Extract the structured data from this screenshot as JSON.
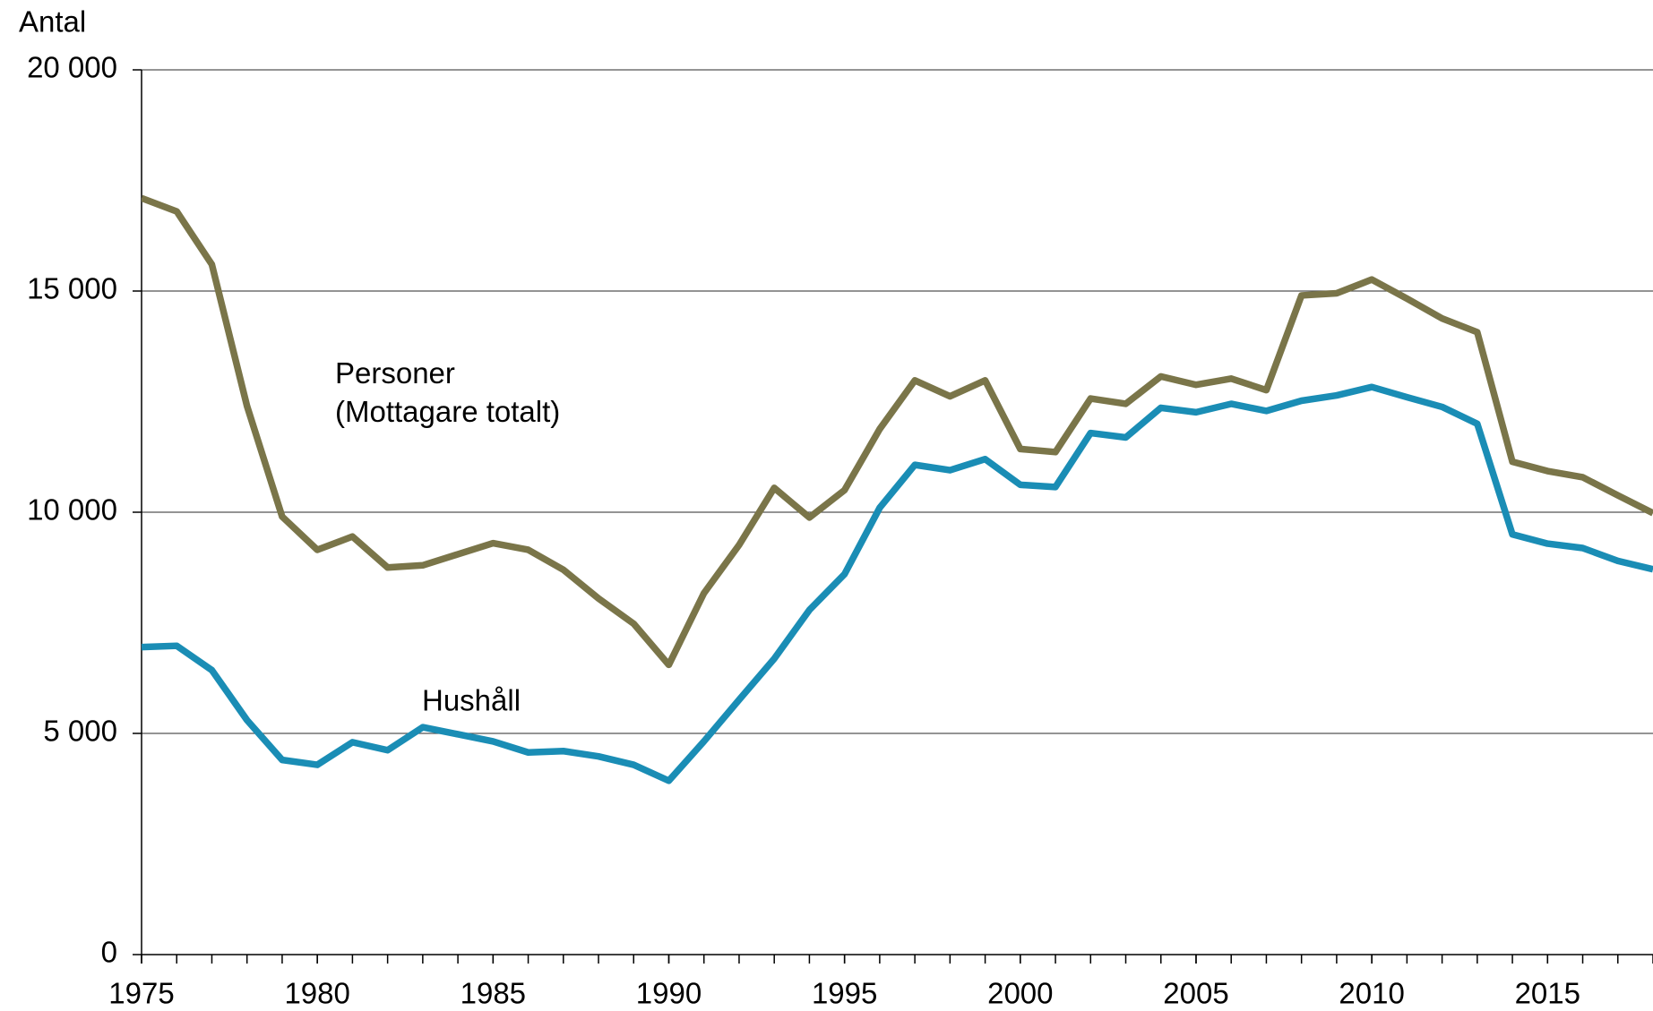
{
  "chart_data": {
    "type": "line",
    "y_axis_label": "Antal",
    "x": [
      1975,
      1976,
      1977,
      1978,
      1979,
      1980,
      1981,
      1982,
      1983,
      1984,
      1985,
      1986,
      1987,
      1988,
      1989,
      1990,
      1991,
      1992,
      1993,
      1994,
      1995,
      1996,
      1997,
      1998,
      1999,
      2000,
      2001,
      2002,
      2003,
      2004,
      2005,
      2006,
      2007,
      2008,
      2009,
      2010,
      2011,
      2012,
      2013,
      2014,
      2015,
      2016,
      2017,
      2018
    ],
    "series": [
      {
        "name": "Personer (Mottagare totalt)",
        "color": "#7a7549",
        "values": [
          17100,
          16800,
          15600,
          12400,
          9900,
          9150,
          9450,
          8750,
          8800,
          9050,
          9300,
          9150,
          8700,
          8050,
          7480,
          6550,
          8170,
          9260,
          10550,
          9880,
          10500,
          11880,
          12980,
          12620,
          12980,
          11430,
          11360,
          12570,
          12450,
          13070,
          12880,
          13020,
          12760,
          14900,
          14950,
          15260,
          14830,
          14380,
          14070,
          11140,
          10930,
          10790,
          10380,
          9980
        ]
      },
      {
        "name": "Hushåll",
        "color": "#1a8db5",
        "values": [
          6950,
          6980,
          6430,
          5300,
          4400,
          4290,
          4800,
          4620,
          5140,
          4980,
          4820,
          4570,
          4600,
          4480,
          4290,
          3930,
          4820,
          5760,
          6690,
          7790,
          8600,
          10100,
          11070,
          10950,
          11200,
          10620,
          10570,
          11790,
          11690,
          12360,
          12260,
          12450,
          12290,
          12520,
          12640,
          12830,
          12600,
          12380,
          12000,
          9500,
          9290,
          9190,
          8900,
          8710
        ]
      }
    ],
    "xlim": [
      1975,
      2018
    ],
    "xticks": [
      1975,
      1980,
      1985,
      1990,
      1995,
      2000,
      2005,
      2010,
      2015
    ],
    "ylim": [
      0,
      20000
    ],
    "yticks": [
      {
        "value": 0,
        "label": "0"
      },
      {
        "value": 5000,
        "label": "5 000"
      },
      {
        "value": 10000,
        "label": "10 000"
      },
      {
        "value": 15000,
        "label": "15 000"
      },
      {
        "value": 20000,
        "label": "20 000"
      }
    ],
    "grid": true
  }
}
